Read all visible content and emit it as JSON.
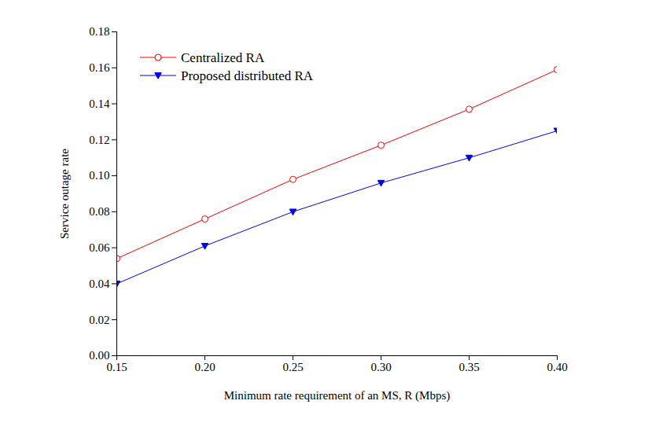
{
  "chart_data": {
    "type": "line",
    "x_label": "Minimum rate requirement of an MS, R (Mbps)",
    "y_label": "Service outage rate",
    "x": [
      0.15,
      0.2,
      0.25,
      0.3,
      0.35,
      0.4
    ],
    "series": [
      {
        "name": "Centralized RA",
        "color": "#ff0000",
        "marker": "circle-open",
        "line_style": "solid",
        "values": [
          0.054,
          0.076,
          0.098,
          0.117,
          0.137,
          0.159
        ]
      },
      {
        "name": "Proposed distributed RA",
        "color": "#0000ff",
        "marker": "triangle-down",
        "line_style": "solid",
        "values": [
          0.04,
          0.061,
          0.08,
          0.096,
          0.11,
          0.125
        ]
      }
    ],
    "xlim": [
      0.15,
      0.4
    ],
    "xticks": [
      0.15,
      {
        "value": 0.2,
        "label": "0.20"
      },
      0.25,
      {
        "value": 0.3,
        "label": "0.30"
      },
      0.35,
      {
        "value": 0.4,
        "label": "0.40"
      }
    ],
    "ylim": [
      0,
      0.18
    ],
    "yticks": [
      {
        "value": 0,
        "label": "0.00"
      },
      0.02,
      0.04,
      0.06,
      0.08,
      {
        "value": 0.1,
        "label": "0.10"
      },
      0.12,
      0.14,
      0.16,
      0.18
    ],
    "grid": false,
    "legend": "upper left"
  }
}
